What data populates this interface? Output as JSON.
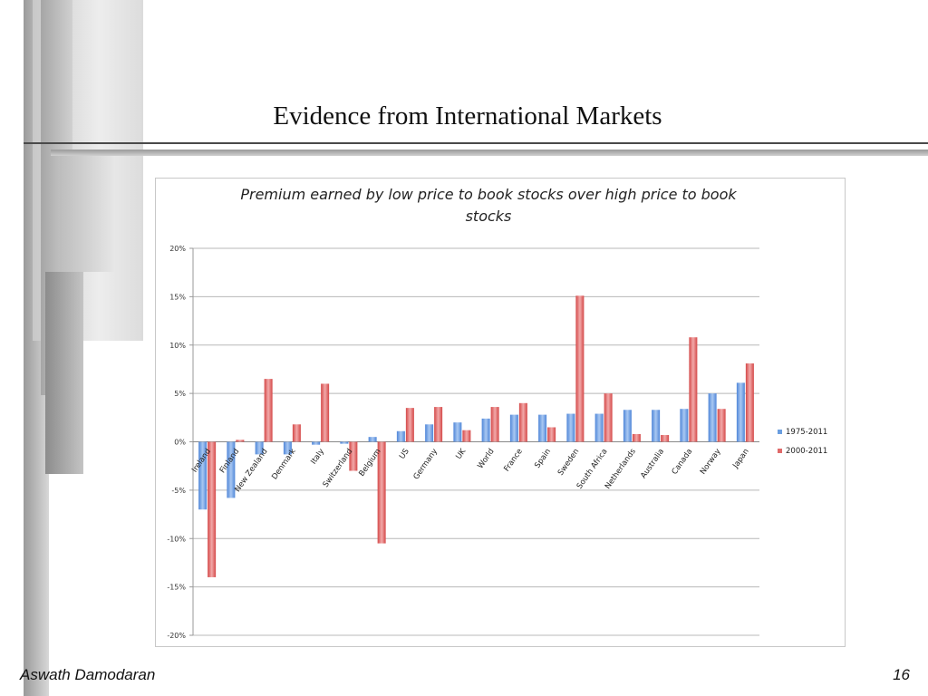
{
  "slide": {
    "title": "Evidence from International Markets",
    "footer_author": "Aswath Damodaran",
    "page_number": "16"
  },
  "chart_data": {
    "type": "bar",
    "title": "Premium earned by low price to book stocks over high price to book stocks",
    "title_lines": [
      "Premium earned by low price to book stocks over high price to book",
      "stocks"
    ],
    "categories": [
      "Ireland",
      "Finland",
      "New Zealand",
      "Denmark",
      "Italy",
      "Switzerland",
      "Belgium",
      "US",
      "Germany",
      "UK",
      "World",
      "France",
      "Spain",
      "Sweden",
      "South Africa",
      "Netherlands",
      "Australia",
      "Canada",
      "Norway",
      "Japan"
    ],
    "series": [
      {
        "name": "1975-2011",
        "color": "#6a9ee0",
        "values": [
          -7.0,
          -5.8,
          -1.3,
          -1.3,
          -0.3,
          -0.2,
          0.5,
          1.1,
          1.8,
          2.0,
          2.4,
          2.8,
          2.8,
          2.9,
          2.9,
          3.3,
          3.3,
          3.4,
          5.0,
          6.1
        ]
      },
      {
        "name": "2000-2011",
        "color": "#e06a6a",
        "values": [
          -14.0,
          0.2,
          6.5,
          1.8,
          6.0,
          -3.0,
          -10.5,
          3.5,
          3.6,
          1.2,
          3.6,
          4.0,
          1.5,
          15.1,
          5.0,
          0.8,
          0.7,
          10.8,
          3.4,
          8.1
        ]
      }
    ],
    "ylim": [
      -20,
      20
    ],
    "yticks": [
      "20%",
      "15%",
      "10%",
      "5%",
      "0%",
      "-5%",
      "-10%",
      "-15%",
      "-20%"
    ],
    "ytick_values": [
      20,
      15,
      10,
      5,
      0,
      -5,
      -10,
      -15,
      -20
    ],
    "grid": true,
    "legend_position": "right"
  }
}
